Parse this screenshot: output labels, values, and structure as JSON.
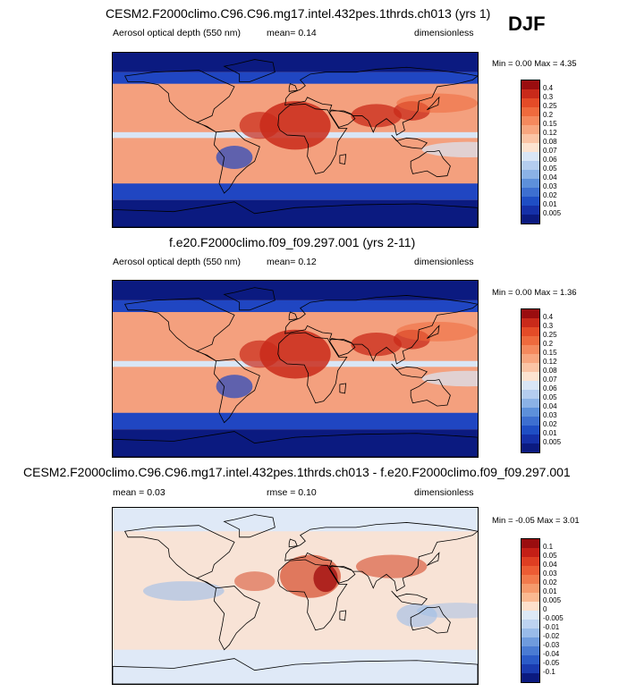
{
  "season_label": "DJF",
  "panels": [
    {
      "id": "test",
      "title": "CESM2.F2000climo.C96.C96.mg17.intel.432pes.1thrds.ch013 (yrs 1)",
      "left_label": "Aerosol optical depth (550 nm)",
      "center_label": "mean=  0.14",
      "right_label": "dimensionless",
      "minmax": "Min =   0.00 Max =   4.35",
      "colorbar": {
        "labels": [
          "0.4",
          "0.3",
          "0.25",
          "0.2",
          "0.15",
          "0.12",
          "0.08",
          "0.07",
          "0.06",
          "0.05",
          "0.04",
          "0.03",
          "0.02",
          "0.01",
          "0.005"
        ],
        "colors": [
          "#9a0d0f",
          "#c92a1a",
          "#e44b27",
          "#ef6a3d",
          "#f5895d",
          "#f8a67f",
          "#fbc4a5",
          "#fde3d0",
          "#d9e6f6",
          "#b4cdef",
          "#8bb2e6",
          "#5d90da",
          "#3d6fd0",
          "#1f4ec4",
          "#1530a8",
          "#0b1a80"
        ]
      },
      "chart_data": {
        "type": "heatmap",
        "title": "CESM2.F2000climo.C96.C96.mg17.intel.432pes.1thrds.ch013 (yrs 1)",
        "variable": "Aerosol optical depth (550 nm)",
        "units": "dimensionless",
        "season": "DJF",
        "mean": 0.14,
        "min": 0.0,
        "max": 4.35
      }
    },
    {
      "id": "ref",
      "title": "f.e20.F2000climo.f09_f09.297.001 (yrs 2-11)",
      "left_label": "Aerosol optical depth (550 nm)",
      "center_label": "mean=  0.12",
      "right_label": "dimensionless",
      "minmax": "Min =   0.00 Max =   1.36",
      "colorbar": {
        "labels": [
          "0.4",
          "0.3",
          "0.25",
          "0.2",
          "0.15",
          "0.12",
          "0.08",
          "0.07",
          "0.06",
          "0.05",
          "0.04",
          "0.03",
          "0.02",
          "0.01",
          "0.005"
        ],
        "colors": [
          "#9a0d0f",
          "#c92a1a",
          "#e44b27",
          "#ef6a3d",
          "#f5895d",
          "#f8a67f",
          "#fbc4a5",
          "#fde3d0",
          "#d9e6f6",
          "#b4cdef",
          "#8bb2e6",
          "#5d90da",
          "#3d6fd0",
          "#1f4ec4",
          "#1530a8",
          "#0b1a80"
        ]
      },
      "chart_data": {
        "type": "heatmap",
        "title": "f.e20.F2000climo.f09_f09.297.001 (yrs 2-11)",
        "variable": "Aerosol optical depth (550 nm)",
        "units": "dimensionless",
        "season": "DJF",
        "mean": 0.12,
        "min": 0.0,
        "max": 1.36
      }
    },
    {
      "id": "diff",
      "title": "CESM2.F2000climo.C96.C96.mg17.intel.432pes.1thrds.ch013 - f.e20.F2000climo.f09_f09.297.001",
      "left_label": "mean =  0.03",
      "center_label": "rmse =  0.10",
      "right_label": "dimensionless",
      "minmax": "Min = -0.05 Max =   3.01",
      "colorbar": {
        "labels": [
          "0.1",
          "0.05",
          "0.04",
          "0.03",
          "0.02",
          "0.01",
          "0.005",
          "0",
          "-0.005",
          "-0.01",
          "-0.02",
          "-0.03",
          "-0.04",
          "-0.05",
          "-0.1"
        ],
        "colors": [
          "#9a0d0f",
          "#c41f16",
          "#de3e22",
          "#ec5c34",
          "#f27a4c",
          "#f69a6c",
          "#fab991",
          "#fde0cb",
          "#dde9f7",
          "#bdd3f1",
          "#99bbe9",
          "#6f9bdd",
          "#4a7bd3",
          "#2b5bc8",
          "#1a3bb0",
          "#0b1a80"
        ]
      },
      "chart_data": {
        "type": "heatmap",
        "title": "CESM2.F2000climo.C96.C96.mg17.intel.432pes.1thrds.ch013 - f.e20.F2000climo.f09_f09.297.001",
        "units": "dimensionless",
        "season": "DJF",
        "mean": 0.03,
        "rmse": 0.1,
        "min": -0.05,
        "max": 3.01
      }
    }
  ],
  "map_style": {
    "abs_ocean": "#f4a07e",
    "abs_hot": "#c92a1a",
    "abs_land": "#a30f10",
    "abs_clean": "#2046c2",
    "abs_polar": "#0b1a80",
    "abs_mid": "#d9e6f6",
    "diff_base": "#f8e3d6",
    "diff_pos": "#d64a2a",
    "diff_strong": "#a30f10",
    "diff_neg": "#9dbde8",
    "diff_light": "#dfe9f7",
    "coast": "#000000"
  }
}
